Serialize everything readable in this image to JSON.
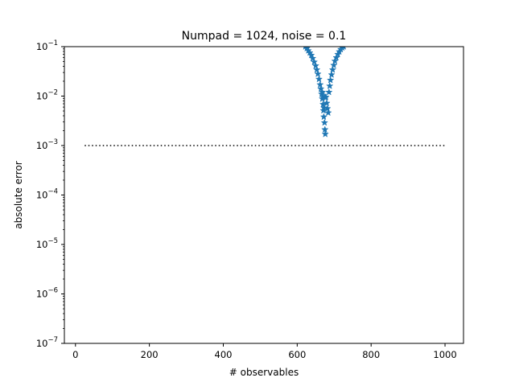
{
  "chart_data": {
    "type": "scatter",
    "title": "Numpad = 1024, noise = 0.1",
    "xlabel": "# observables",
    "ylabel": "absolute error",
    "xlim": [
      -30,
      1050
    ],
    "ylim": [
      1e-07,
      0.1
    ],
    "yscale": "log",
    "xticks": [
      0,
      200,
      400,
      600,
      800,
      1000
    ],
    "xtick_labels": [
      "0",
      "200",
      "400",
      "600",
      "800",
      "1000"
    ],
    "yticks": [
      {
        "base": "10",
        "exp": "−7",
        "value": 1e-07
      },
      {
        "base": "10",
        "exp": "−6",
        "value": 1e-06
      },
      {
        "base": "10",
        "exp": "−5",
        "value": 1e-05
      },
      {
        "base": "10",
        "exp": "−4",
        "value": 0.0001
      },
      {
        "base": "10",
        "exp": "−3",
        "value": 0.001
      },
      {
        "base": "10",
        "exp": "−2",
        "value": 0.01
      },
      {
        "base": "10",
        "exp": "−1",
        "value": 0.1
      }
    ],
    "grid": false,
    "series": [
      {
        "marker": "star",
        "color": "#1f77b4",
        "points": [
          [
            622,
            0.1
          ],
          [
            626,
            0.092
          ],
          [
            630,
            0.083
          ],
          [
            634,
            0.075
          ],
          [
            638,
            0.067
          ],
          [
            642,
            0.058
          ],
          [
            646,
            0.049
          ],
          [
            650,
            0.041
          ],
          [
            653,
            0.034
          ],
          [
            656,
            0.028
          ],
          [
            659,
            0.022
          ],
          [
            662,
            0.017
          ],
          [
            664,
            0.014
          ],
          [
            666,
            0.011
          ],
          [
            668,
            0.0088
          ],
          [
            670,
            0.0068
          ],
          [
            671,
            0.0051
          ],
          [
            672,
            0.0038
          ],
          [
            674,
            0.0029
          ],
          [
            675,
            0.0021
          ],
          [
            676,
            0.0017
          ],
          [
            668,
            0.012
          ],
          [
            670,
            0.0095
          ],
          [
            672,
            0.0058
          ],
          [
            674,
            0.0095
          ],
          [
            676,
            0.0095
          ],
          [
            678,
            0.0095
          ],
          [
            680,
            0.0072
          ],
          [
            682,
            0.0056
          ],
          [
            684,
            0.0046
          ],
          [
            686,
            0.012
          ],
          [
            688,
            0.016
          ],
          [
            690,
            0.021
          ],
          [
            693,
            0.027
          ],
          [
            696,
            0.034
          ],
          [
            699,
            0.042
          ],
          [
            702,
            0.051
          ],
          [
            706,
            0.06
          ],
          [
            710,
            0.07
          ],
          [
            714,
            0.079
          ],
          [
            718,
            0.088
          ],
          [
            722,
            0.095
          ],
          [
            726,
            0.1
          ]
        ]
      },
      {
        "style": "dotted",
        "color": "#000000",
        "points": [
          [
            25,
            0.001
          ],
          [
            1000,
            0.001
          ]
        ]
      }
    ]
  }
}
